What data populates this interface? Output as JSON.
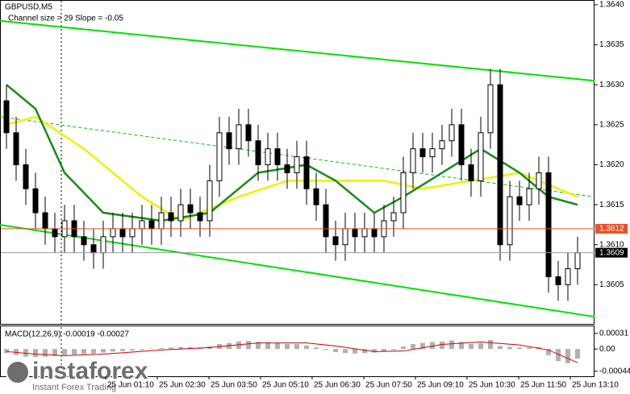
{
  "chart_data": [
    {
      "type": "candlestick",
      "title": "GBPUSD,M5",
      "subtitle": "Channel size = 29 Slope = -0.05",
      "open": [
        1.3628,
        1.3624,
        1.362,
        1.3617,
        1.3614,
        1.3612,
        1.3611,
        1.3613,
        1.3611,
        1.361,
        1.3609,
        1.3611,
        1.3612,
        1.3611,
        1.3612,
        1.3613,
        1.3612,
        1.3614,
        1.3613,
        1.3615,
        1.3614,
        1.3613,
        1.3618,
        1.3624,
        1.3622,
        1.3625,
        1.3623,
        1.362,
        1.3622,
        1.362,
        1.3619,
        1.3621,
        1.3617,
        1.3615,
        1.3611,
        1.361,
        1.3612,
        1.3611,
        1.3612,
        1.3611,
        1.3613,
        1.3614,
        1.3619,
        1.3622,
        1.3621,
        1.3622,
        1.3623,
        1.3625,
        1.362,
        1.3618,
        1.3624,
        1.363,
        1.361,
        1.3616,
        1.3615,
        1.3617,
        1.3619,
        1.3606,
        1.3605,
        1.3607
      ],
      "high": [
        1.363,
        1.3626,
        1.3622,
        1.3619,
        1.3616,
        1.3614,
        1.3615,
        1.3615,
        1.3613,
        1.3612,
        1.3613,
        1.3614,
        1.3614,
        1.3614,
        1.3615,
        1.3615,
        1.3616,
        1.3616,
        1.3617,
        1.3617,
        1.3616,
        1.362,
        1.3626,
        1.3626,
        1.3627,
        1.3627,
        1.3625,
        1.3624,
        1.3624,
        1.3622,
        1.3623,
        1.3623,
        1.3619,
        1.3617,
        1.3613,
        1.3614,
        1.3614,
        1.3614,
        1.3614,
        1.3615,
        1.3616,
        1.3621,
        1.3624,
        1.3624,
        1.3624,
        1.3625,
        1.3627,
        1.3627,
        1.3622,
        1.3626,
        1.3632,
        1.3632,
        1.3618,
        1.3618,
        1.3619,
        1.3621,
        1.3621,
        1.3608,
        1.3609,
        1.3611
      ],
      "low": [
        1.3622,
        1.3618,
        1.3615,
        1.3612,
        1.361,
        1.3609,
        1.3609,
        1.3609,
        1.3608,
        1.3607,
        1.3607,
        1.3609,
        1.3609,
        1.3609,
        1.361,
        1.361,
        1.361,
        1.3611,
        1.3611,
        1.3612,
        1.3611,
        1.3611,
        1.3616,
        1.362,
        1.362,
        1.3621,
        1.3618,
        1.3618,
        1.3618,
        1.3617,
        1.3617,
        1.3615,
        1.3613,
        1.3609,
        1.3608,
        1.3608,
        1.3609,
        1.3609,
        1.3609,
        1.3609,
        1.3611,
        1.3612,
        1.3617,
        1.3619,
        1.3619,
        1.362,
        1.3621,
        1.3618,
        1.3616,
        1.3616,
        1.3622,
        1.3608,
        1.3608,
        1.3613,
        1.3613,
        1.3615,
        1.3604,
        1.3603,
        1.3603,
        1.3605
      ],
      "close": [
        1.3624,
        1.362,
        1.3617,
        1.3614,
        1.3612,
        1.3611,
        1.3613,
        1.3611,
        1.361,
        1.3609,
        1.3611,
        1.3612,
        1.3611,
        1.3612,
        1.3613,
        1.3612,
        1.3614,
        1.3613,
        1.3615,
        1.3614,
        1.3613,
        1.3618,
        1.3624,
        1.3622,
        1.3625,
        1.3623,
        1.362,
        1.3622,
        1.362,
        1.3619,
        1.3621,
        1.3617,
        1.3615,
        1.3611,
        1.361,
        1.3612,
        1.3611,
        1.3612,
        1.3611,
        1.3613,
        1.3614,
        1.3619,
        1.3622,
        1.3621,
        1.3622,
        1.3623,
        1.3625,
        1.362,
        1.3618,
        1.3624,
        1.363,
        1.361,
        1.3616,
        1.3615,
        1.3617,
        1.3619,
        1.3606,
        1.3605,
        1.3607,
        1.3609
      ],
      "ylim": [
        1.36,
        1.36405
      ],
      "yticks": [
        {
          "value": 1.364,
          "label": "1.3640"
        },
        1.3635,
        {
          "value": 1.363,
          "label": "1.3630"
        },
        1.3625,
        {
          "value": 1.362,
          "label": "1.3620"
        },
        1.3615,
        {
          "value": 1.361,
          "label": "1.3610"
        },
        1.3605
      ],
      "xticks": [
        {
          "value": 10.25,
          "label": "25 Jun 01:10"
        },
        {
          "value": 15.58,
          "label": "25 Jun 02:30"
        },
        {
          "value": 20.92,
          "label": "25 Jun 03:50"
        },
        {
          "value": 26.25,
          "label": "25 Jun 05:10"
        },
        {
          "value": 31.58,
          "label": "25 Jun 06:30"
        },
        {
          "value": 36.92,
          "label": "25 Jun 07:50"
        },
        {
          "value": 42.25,
          "label": "25 Jun 09:10"
        },
        {
          "value": 47.58,
          "label": "25 Jun 10:30"
        },
        {
          "value": 52.92,
          "label": "25 Jun 11:50"
        },
        {
          "value": 58.25,
          "label": "25 Jun 13:10"
        }
      ],
      "overlays": [
        {
          "color": "#00e000",
          "style": "solid",
          "x": [
            -0.67,
            60.75
          ],
          "values": [
            1.3638,
            1.36305
          ]
        },
        {
          "color": "#00e000",
          "style": "solid",
          "x": [
            -0.67,
            60.75
          ],
          "values": [
            1.36125,
            1.3601
          ]
        },
        {
          "color": "#00c000",
          "style": "dashed",
          "x": [
            -0.67,
            60.75
          ],
          "values": [
            1.3626,
            1.3616
          ]
        },
        {
          "color": "#f0f000",
          "style": "thick",
          "x": [
            0,
            3,
            8,
            14,
            18,
            24,
            29,
            34,
            39,
            43,
            48,
            53,
            59
          ],
          "values": [
            1.3625,
            1.3626,
            1.3622,
            1.3616,
            1.3613,
            1.3616,
            1.3618,
            1.3618,
            1.3618,
            1.3617,
            1.3618,
            1.3619,
            1.3616
          ]
        },
        {
          "color": "#1a8a1a",
          "style": "thick",
          "x": [
            0,
            3,
            6,
            10,
            16,
            21,
            26,
            31,
            34,
            38,
            41,
            45,
            49,
            53,
            56,
            59
          ],
          "values": [
            1.363,
            1.3627,
            1.3619,
            1.3614,
            1.3613,
            1.3614,
            1.3619,
            1.362,
            1.3618,
            1.3614,
            1.3616,
            1.3619,
            1.3622,
            1.3619,
            1.3616,
            1.3615
          ]
        }
      ],
      "levels": [
        {
          "value": 1.3612,
          "color": "#e8502a"
        },
        {
          "value": 1.3609,
          "color": "#000000"
        }
      ]
    },
    {
      "type": "bar",
      "title": "MACD(12,26,9) -0.00019 -0.00027",
      "color": "#b0b0b0",
      "values": [
        -8e-05,
        -0.00012,
        -0.00015,
        -0.00016,
        -0.00015,
        -0.00014,
        -0.00012,
        -0.00011,
        -0.0001,
        -9e-05,
        -7e-05,
        -5e-05,
        -4e-05,
        -3e-05,
        -2e-05,
        1e-05,
        2e-05,
        3e-05,
        4e-05,
        4e-05,
        3e-05,
        5e-05,
        0.0001,
        0.00012,
        0.00015,
        0.00016,
        0.00014,
        0.00013,
        0.00012,
        0.0001,
        0.0001,
        7e-05,
        3e-05,
        -2e-05,
        -6e-05,
        -8e-05,
        -9e-05,
        -8e-05,
        -7e-05,
        -5e-05,
        -2e-05,
        5e-05,
        0.0001,
        0.00012,
        0.00014,
        0.00015,
        0.00017,
        0.00014,
        0.0001,
        0.00012,
        0.00018,
        6e-05,
        4e-05,
        3e-05,
        3e-05,
        4e-05,
        -0.00012,
        -0.00024,
        -0.00028,
        -0.00019
      ],
      "signal": {
        "color": "#d00000",
        "x": [
          0,
          3,
          6,
          10,
          16,
          21,
          26,
          31,
          34,
          38,
          41,
          45,
          49,
          53,
          56,
          59
        ],
        "values": [
          -5e-05,
          -0.0001,
          -0.00013,
          -0.0001,
          -2e-05,
          3e-05,
          0.00012,
          0.00012,
          6e-05,
          -5e-05,
          -4e-05,
          9e-05,
          0.00014,
          8e-05,
          -2e-05,
          -0.00027
        ]
      },
      "ylim": [
        -0.00054,
        0.00045
      ],
      "yticks": [
        0.00031,
        {
          "value": 0,
          "label": "0.00"
        },
        -0.00044
      ]
    }
  ],
  "watermark": {
    "brand": "instaforex",
    "tagline": "Instant Forex Trading"
  }
}
